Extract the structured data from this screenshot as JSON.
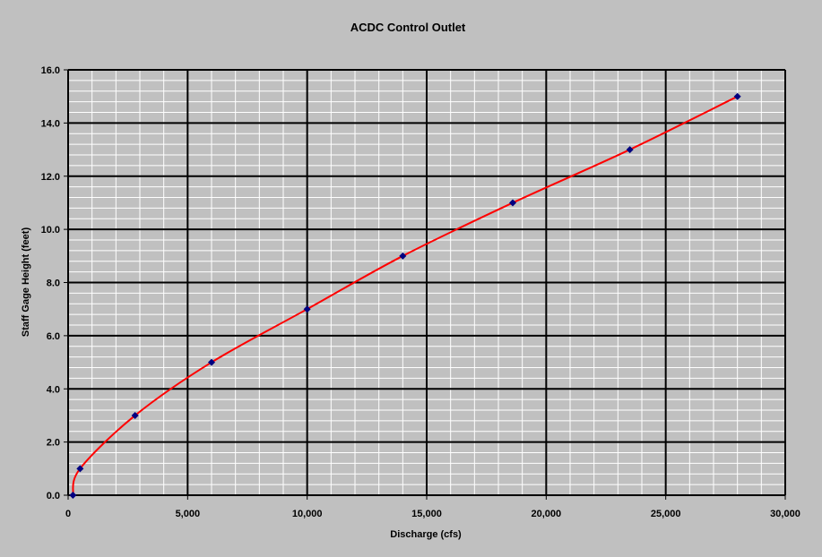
{
  "chart_data": {
    "type": "line",
    "title": "ACDC Control Outlet",
    "xlabel": "Discharge (cfs)",
    "ylabel": "Staff Gage Height (feet)",
    "xlim": [
      0,
      30000
    ],
    "ylim": [
      0,
      16
    ],
    "x_major_step": 5000,
    "x_minor_step": 1000,
    "y_major_step": 2,
    "y_minor_step": 0.4,
    "x_tick_labels": [
      "0",
      "5,000",
      "10,000",
      "15,000",
      "20,000",
      "25,000",
      "30,000"
    ],
    "y_tick_labels": [
      "0.0",
      "2.0",
      "4.0",
      "6.0",
      "8.0",
      "10.0",
      "12.0",
      "14.0",
      "16.0"
    ],
    "grid": true,
    "legend": "none",
    "series": [
      {
        "x": [
          200,
          500,
          2800,
          6000,
          10000,
          14000,
          18600,
          23500,
          28000
        ],
        "y": [
          0,
          1,
          3,
          5,
          7,
          9,
          11,
          13,
          15
        ],
        "line_color": "#ff0000",
        "marker": "diamond",
        "marker_color": "#000080"
      }
    ],
    "colors": {
      "background": "#c0c0c0",
      "plot_area": "#c0c0c0",
      "major_grid": "#000000",
      "minor_grid": "#ffffff"
    }
  }
}
